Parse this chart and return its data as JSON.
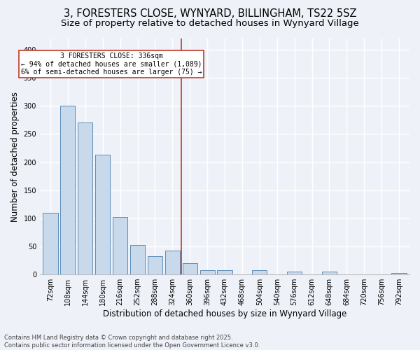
{
  "title1": "3, FORESTERS CLOSE, WYNYARD, BILLINGHAM, TS22 5SZ",
  "title2": "Size of property relative to detached houses in Wynyard Village",
  "xlabel": "Distribution of detached houses by size in Wynyard Village",
  "ylabel": "Number of detached properties",
  "bin_labels": [
    "72sqm",
    "108sqm",
    "144sqm",
    "180sqm",
    "216sqm",
    "252sqm",
    "288sqm",
    "324sqm",
    "360sqm",
    "396sqm",
    "432sqm",
    "468sqm",
    "504sqm",
    "540sqm",
    "576sqm",
    "612sqm",
    "648sqm",
    "684sqm",
    "720sqm",
    "756sqm",
    "792sqm"
  ],
  "bar_values": [
    110,
    300,
    270,
    213,
    102,
    52,
    33,
    43,
    20,
    7,
    7,
    0,
    8,
    0,
    5,
    0,
    5,
    0,
    0,
    0,
    3
  ],
  "bar_color": "#c9d9ec",
  "bar_edge_color": "#5b8db8",
  "vline_x": 7.5,
  "vline_color": "#c0392b",
  "annotation_text": "3 FORESTERS CLOSE: 336sqm\n← 94% of detached houses are smaller (1,089)\n6% of semi-detached houses are larger (75) →",
  "annotation_box_color": "#c0392b",
  "ylim": [
    0,
    420
  ],
  "yticks": [
    0,
    50,
    100,
    150,
    200,
    250,
    300,
    350,
    400
  ],
  "footnote": "Contains HM Land Registry data © Crown copyright and database right 2025.\nContains public sector information licensed under the Open Government Licence v3.0.",
  "bg_color": "#eef2f8",
  "grid_color": "#ffffff",
  "title_fontsize": 10.5,
  "subtitle_fontsize": 9.5,
  "tick_fontsize": 7,
  "ylabel_fontsize": 8.5,
  "xlabel_fontsize": 8.5,
  "footnote_fontsize": 6.0
}
